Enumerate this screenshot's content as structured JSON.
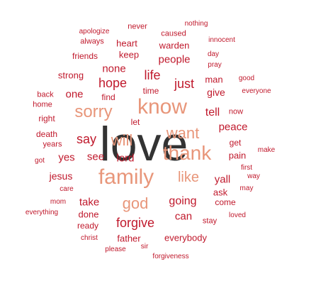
{
  "colors": {
    "dark": "#333333",
    "salmon": "#e8967a",
    "red": "#c0192c"
  },
  "words": [
    {
      "text": "love",
      "tone": "dark"
    },
    {
      "text": "family",
      "tone": "salmon"
    },
    {
      "text": "know",
      "tone": "salmon"
    },
    {
      "text": "thank",
      "tone": "salmon"
    },
    {
      "text": "sorry",
      "tone": "salmon"
    },
    {
      "text": "want",
      "tone": "salmon"
    },
    {
      "text": "will",
      "tone": "salmon"
    },
    {
      "text": "god",
      "tone": "salmon"
    },
    {
      "text": "like",
      "tone": "salmon"
    },
    {
      "text": "forgive",
      "tone": "red"
    },
    {
      "text": "hope",
      "tone": "red"
    },
    {
      "text": "life",
      "tone": "red"
    },
    {
      "text": "just",
      "tone": "red"
    },
    {
      "text": "people",
      "tone": "red"
    },
    {
      "text": "none",
      "tone": "red"
    },
    {
      "text": "say",
      "tone": "red"
    },
    {
      "text": "see",
      "tone": "red"
    },
    {
      "text": "lord",
      "tone": "red"
    },
    {
      "text": "going",
      "tone": "red"
    },
    {
      "text": "take",
      "tone": "red"
    },
    {
      "text": "tell",
      "tone": "red"
    },
    {
      "text": "yall",
      "tone": "red"
    },
    {
      "text": "peace",
      "tone": "red"
    },
    {
      "text": "yes",
      "tone": "red"
    },
    {
      "text": "jesus",
      "tone": "red"
    },
    {
      "text": "can",
      "tone": "red"
    },
    {
      "text": "one",
      "tone": "red"
    },
    {
      "text": "give",
      "tone": "red"
    },
    {
      "text": "keep",
      "tone": "red"
    },
    {
      "text": "warden",
      "tone": "red"
    },
    {
      "text": "heart",
      "tone": "red"
    },
    {
      "text": "strong",
      "tone": "red"
    },
    {
      "text": "father",
      "tone": "red"
    },
    {
      "text": "everybody",
      "tone": "red"
    },
    {
      "text": "done",
      "tone": "red"
    },
    {
      "text": "ready",
      "tone": "red"
    },
    {
      "text": "man",
      "tone": "red"
    },
    {
      "text": "ask",
      "tone": "red"
    },
    {
      "text": "pain",
      "tone": "red"
    },
    {
      "text": "get",
      "tone": "red"
    },
    {
      "text": "death",
      "tone": "red"
    },
    {
      "text": "friends",
      "tone": "red"
    },
    {
      "text": "time",
      "tone": "red"
    },
    {
      "text": "find",
      "tone": "red"
    },
    {
      "text": "let",
      "tone": "red"
    },
    {
      "text": "now",
      "tone": "red"
    },
    {
      "text": "come",
      "tone": "red"
    },
    {
      "text": "stay",
      "tone": "red"
    },
    {
      "text": "years",
      "tone": "red"
    },
    {
      "text": "right",
      "tone": "red"
    },
    {
      "text": "home",
      "tone": "red"
    },
    {
      "text": "back",
      "tone": "red"
    },
    {
      "text": "never",
      "tone": "red"
    },
    {
      "text": "caused",
      "tone": "red"
    },
    {
      "text": "nothing",
      "tone": "red"
    },
    {
      "text": "always",
      "tone": "red"
    },
    {
      "text": "apologize",
      "tone": "red"
    },
    {
      "text": "innocent",
      "tone": "red"
    },
    {
      "text": "day",
      "tone": "red"
    },
    {
      "text": "pray",
      "tone": "red"
    },
    {
      "text": "good",
      "tone": "red"
    },
    {
      "text": "everyone",
      "tone": "red"
    },
    {
      "text": "make",
      "tone": "red"
    },
    {
      "text": "first",
      "tone": "red"
    },
    {
      "text": "way",
      "tone": "red"
    },
    {
      "text": "may",
      "tone": "red"
    },
    {
      "text": "loved",
      "tone": "red"
    },
    {
      "text": "got",
      "tone": "red"
    },
    {
      "text": "care",
      "tone": "red"
    },
    {
      "text": "mom",
      "tone": "red"
    },
    {
      "text": "everything",
      "tone": "red"
    },
    {
      "text": "christ",
      "tone": "red"
    },
    {
      "text": "please",
      "tone": "red"
    },
    {
      "text": "sir",
      "tone": "red"
    },
    {
      "text": "forgiveness",
      "tone": "red"
    }
  ]
}
